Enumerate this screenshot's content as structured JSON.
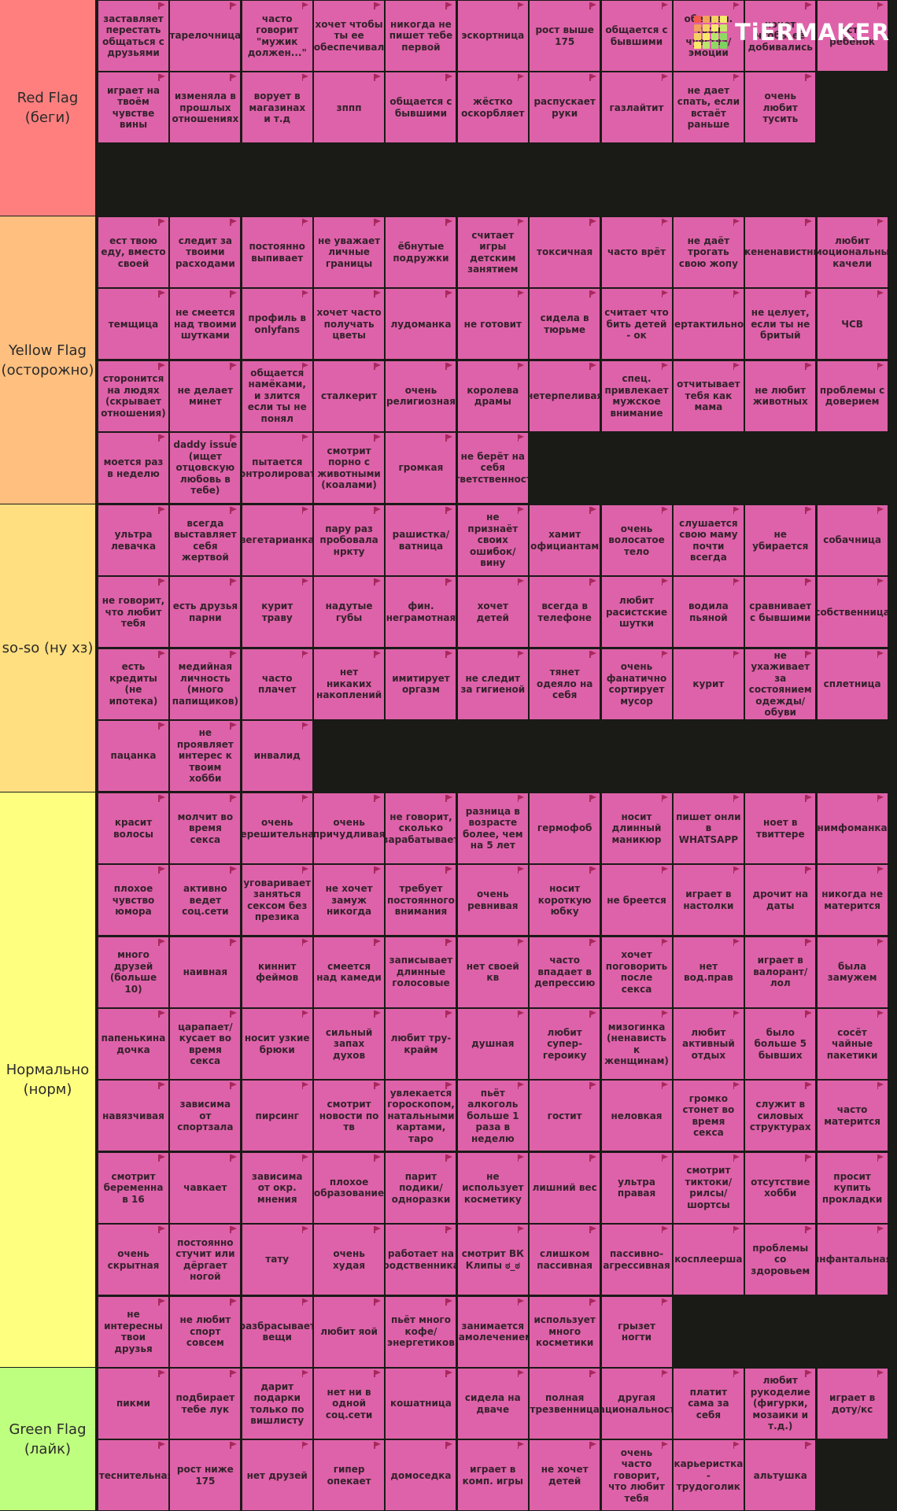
{
  "logo": {
    "text": "TiERMAKER",
    "grid_colors": [
      "#f15a4e",
      "#f4a259",
      "#f5cf60",
      "#f7e96a",
      "#f2a25c",
      "#f6d161",
      "#fbe96b",
      "#c9e76b",
      "#f6d162",
      "#fbe96b",
      "#b7e56b",
      "#8fd864",
      "#fbe96b",
      "#b9e66d",
      "#8ed965",
      "#7dd35f"
    ]
  },
  "item_color": "#de62a9",
  "tiers": [
    {
      "name": "red-flag",
      "label_lines": [
        "Red Flag",
        "(беги)"
      ],
      "color": "#ff7f7f",
      "items": [
        "заставляет перестать общаться с друзьями",
        "тарелочница",
        "часто говорит \"мужик должен...\"",
        "хочет чтобы ты ее обеспечивал",
        "никогда не пишет тебе первой",
        "эскортница",
        "рост выше 175",
        "общается с бывшими",
        "обесцен. твои чувства/ эмоции",
        "хочет чтобы её добивались",
        "есть ребёнок",
        "играет на твоём чувстве вины",
        "изменяла в прошлых отношениях",
        "ворует в магазинах и т.д",
        "зппп",
        "общается с бывшими",
        "жёстко оскорбляет",
        "распускает руки",
        "газлайтит",
        "не дает спать, если встаёт раньше",
        "очень любит тусить"
      ]
    },
    {
      "name": "yellow-flag",
      "label_lines": [
        "Yellow Flag",
        "(осторожно)"
      ],
      "color": "#ffbf7f",
      "items": [
        "ест твою еду, вместо своей",
        "следит за твоими расходами",
        "постоянно выпивает",
        "не уважает личные границы",
        "ёбнутые подружки",
        "считает игры детским занятием",
        "токсичная",
        "часто врёт",
        "не даёт трогать свою жопу",
        "мужененавистница",
        "любит эмоциональные качели",
        "темщица",
        "не смеется над твоими шутками",
        "профиль в onlyfans",
        "хочет часто получать цветы",
        "лудоманка",
        "не готовит",
        "сидела в тюрьме",
        "считает что бить детей - ок",
        "гипертактильность",
        "не целует, если ты не бритый",
        "ЧСВ",
        "сторонится на людях (скрывает отношения)",
        "не делает минет",
        "общается намёками, и злится если ты не понял",
        "сталкерит",
        "очень религиозная",
        "королева драмы",
        "нетерпеливая",
        "спец. привлекает мужское внимание",
        "отчитывает тебя как мама",
        "не любит животных",
        "проблемы с доверием",
        "моется раз в неделю",
        "daddy issue (ищет отцовскую любовь в тебе)",
        "пытается контролировать",
        "смотрит порно с животными (коалами)",
        "громкая",
        "не берёт на себя ответственность"
      ]
    },
    {
      "name": "so-so",
      "label_lines": [
        "so-so (ну хз)"
      ],
      "color": "#ffdf7f",
      "items": [
        "ультра левачка",
        "всегда выставляет себя жертвой",
        "вегетарианка",
        "пару раз пробовала нркту",
        "рашистка/ ватница",
        "не признаёт своих ошибок/ вину",
        "хамит официантам",
        "очень волосатое тело",
        "слушается свою маму почти всегда",
        "не убирается",
        "собачница",
        "не говорит, что любит тебя",
        "есть друзья парни",
        "курит траву",
        "надутые губы",
        "фин. неграмотная",
        "хочет детей",
        "всегда в телефоне",
        "любит расистские шутки",
        "водила пьяной",
        "сравнивает с бывшими",
        "собственница",
        "есть кредиты (не ипотека)",
        "медийная личность (много папищиков)",
        "часто плачет",
        "нет никаких накоплений",
        "имитирует оргазм",
        "не следит за гигиеной",
        "тянет одеяло на себя",
        "очень фанатично сортирует мусор",
        "курит",
        "не ухаживает за состоянием одежды/ обуви",
        "сплетница",
        "пацанка",
        "не проявляет интерес к твоим хобби",
        "инвалид"
      ]
    },
    {
      "name": "normal",
      "label_lines": [
        "Нормально",
        "(норм)"
      ],
      "color": "#ffff7f",
      "items": [
        "красит волосы",
        "молчит во время секса",
        "очень нерешительная",
        "очень причудливая",
        "не говорит, сколько зарабатывает",
        "разница в возрасте более, чем на 5 лет",
        "гермофоб",
        "носит длинный маникюр",
        "пишет онли в WHATSAPP",
        "ноет в твиттере",
        "нимфоманка",
        "плохое чувство юмора",
        "активно ведет соц.сети",
        "уговаривает заняться сексом без презика",
        "не хочет замуж никогда",
        "требует постоянного внимания",
        "очень ревнивая",
        "носит короткую юбку",
        "не бреется",
        "играет в настолки",
        "дрочит на даты",
        "никогда не матерится",
        "много друзей (больше 10)",
        "наивная",
        "киннит феймов",
        "смеется над камеди",
        "записывает длинные голосовые",
        "нет своей кв",
        "часто впадает в депрессию",
        "хочет поговорить после секса",
        "нет вод.прав",
        "играет в валорант/ лол",
        "была замужем",
        "папенькина дочка",
        "царапает/ кусает во время секса",
        "носит узкие брюки",
        "сильный запах духов",
        "любит тру-крайм",
        "душная",
        "любит супер-героику",
        "мизогинка (ненависть к женщинам)",
        "любит активный отдых",
        "было больше 5 бывших",
        "сосёт чайные пакетики",
        "навязчивая",
        "зависима от спортзала",
        "пирсинг",
        "смотрит новости по тв",
        "увлекается гороскопом, натальными картами, таро",
        "пьёт алкоголь больше 1 раза в неделю",
        "гостит",
        "неловкая",
        "громко стонет во время секса",
        "служит в силовых структурах",
        "часто матерится",
        "смотрит беременна в 16",
        "чавкает",
        "зависима от окр. мнения",
        "плохое образование",
        "парит подики/ одноразки",
        "не использует косметику",
        "лишний вес",
        "ультра правая",
        "смотрит тиктоки/ рилсы/ шортсы",
        "отсутствие хобби",
        "просит купить прокладки",
        "очень скрытная",
        "постоянно стучит или дёргает ногой",
        "тату",
        "очень худая",
        "работает на родственника",
        "смотрит ВК Клипы ಠ_ಠ",
        "слишком пассивная",
        "пассивно-агрессивная",
        "косплеерша",
        "проблемы со здоровьем",
        "инфантальная",
        "не интересны твои друзья",
        "не любит спорт совсем",
        "разбрасывает вещи",
        "любит яой",
        "пьёт много кофе/ энергетиков",
        "занимается самолечением",
        "использует много косметики",
        "грызет ногти"
      ]
    },
    {
      "name": "green-flag",
      "label_lines": [
        "Green Flag",
        "(лайк)"
      ],
      "color": "#bfff7f",
      "items": [
        "пикми",
        "подбирает тебе лук",
        "дарит подарки только по вишлисту",
        "нет ни в одной соц.сети",
        "кошатница",
        "сидела на дваче",
        "полная трезвенница",
        "другая национальность",
        "платит сама за себя",
        "любит рукоделие (фигурки, мозаики и т.д.)",
        "играет в доту/кс",
        "стеснительная",
        "рост ниже 175",
        "нет друзей",
        "гипер опекает",
        "домоседка",
        "играет в комп. игры",
        "не хочет детей",
        "очень часто говорит, что любит тебя",
        "карьеристка - трудоголик",
        "альтушка"
      ]
    }
  ]
}
